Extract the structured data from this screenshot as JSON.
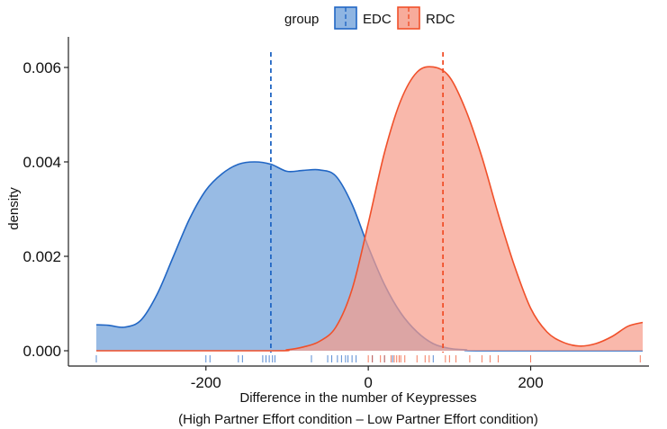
{
  "chart_data": {
    "type": "area",
    "title": "",
    "xlabel": "Difference in the number of Keypresses",
    "xlabel_line2": "(High Partner Effort condition – Low Partner Effort condition)",
    "ylabel": "density",
    "xlim": [
      -335,
      338
    ],
    "ylim": [
      0,
      0.006
    ],
    "x_ticks": [
      -200,
      0,
      200
    ],
    "x_tick_labels": [
      "-200",
      "0",
      "200"
    ],
    "y_ticks": [
      0,
      0.002,
      0.004,
      0.006
    ],
    "y_tick_labels": [
      "0.000",
      "0.002",
      "0.004",
      "0.006"
    ],
    "grid": false,
    "legend": {
      "title": "group",
      "placement": "top",
      "entries": [
        "EDC",
        "RDC"
      ]
    },
    "series": [
      {
        "name": "EDC",
        "stroke": "#2166c4",
        "fill": "#7ba8dd",
        "mean": -120,
        "rug": [
          -335,
          -200,
          -195,
          -160,
          -155,
          -130,
          -126,
          -122,
          -118,
          -115,
          -70,
          -50,
          -45,
          -38,
          -33,
          -28,
          -25,
          -20,
          -15,
          5,
          20,
          30,
          80
        ],
        "x": [
          -335,
          -320,
          -300,
          -280,
          -260,
          -240,
          -220,
          -200,
          -180,
          -160,
          -140,
          -120,
          -100,
          -80,
          -60,
          -40,
          -20,
          0,
          20,
          40,
          60,
          80,
          100,
          120,
          140,
          338
        ],
        "y": [
          0.00055,
          0.00054,
          0.0005,
          0.00065,
          0.0012,
          0.002,
          0.0028,
          0.0034,
          0.00375,
          0.00395,
          0.004,
          0.00395,
          0.0038,
          0.00382,
          0.00383,
          0.0037,
          0.0031,
          0.0022,
          0.0014,
          0.0008,
          0.0004,
          0.00015,
          5e-05,
          2e-05,
          0.0,
          0.0
        ]
      },
      {
        "name": "RDC",
        "stroke": "#f0502a",
        "fill": "#f69c8a",
        "mean": 92,
        "rug": [
          0,
          5,
          15,
          20,
          28,
          32,
          35,
          38,
          40,
          45,
          60,
          70,
          75,
          95,
          100,
          108,
          125,
          140,
          150,
          160,
          200,
          335
        ],
        "x": [
          -335,
          -120,
          -100,
          -80,
          -60,
          -40,
          -20,
          0,
          20,
          40,
          60,
          80,
          100,
          120,
          140,
          160,
          180,
          200,
          220,
          240,
          260,
          280,
          300,
          320,
          338
        ],
        "y": [
          0.0,
          0.0,
          2e-05,
          8e-05,
          0.0002,
          0.0005,
          0.0013,
          0.0027,
          0.0042,
          0.0053,
          0.0059,
          0.00601,
          0.0058,
          0.0051,
          0.0041,
          0.0029,
          0.0018,
          0.0009,
          0.0004,
          0.00018,
          0.0001,
          0.00015,
          0.0003,
          0.00052,
          0.0006
        ]
      }
    ]
  }
}
